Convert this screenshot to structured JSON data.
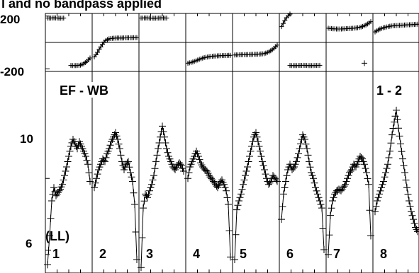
{
  "title": "l and no bandpass applied",
  "baseline_label": "EF - WB",
  "pol_label": "(LL)",
  "corner_label": "1 - 2",
  "phase_ticks": [
    "200",
    "-200"
  ],
  "amp_ticks": [
    "10",
    "6"
  ],
  "chart_data": {
    "type": "scatter",
    "panels": [
      {
        "name": "phase",
        "ylim": [
          -220,
          220
        ],
        "yticks": [
          200,
          -200
        ],
        "channels": [
          {
            "id": "1",
            "segments": [
              {
                "x": [
                  0.0,
                  0.08,
                  0.15,
                  0.22,
                  0.3,
                  0.38
                ],
                "y": [
                  185,
                  185,
                  186,
                  185,
                  184,
                  185
                ]
              },
              {
                "x": [
                  0.55,
                  0.62,
                  0.7,
                  0.78,
                  0.86,
                  0.94,
                  1.0
                ],
                "y": [
                  -175,
                  -176,
                  -175,
                  -172,
                  -160,
                  -140,
                  -118
                ]
              }
            ]
          },
          {
            "id": "2",
            "segments": [
              {
                "x": [
                  0.0,
                  0.06,
                  0.12,
                  0.18,
                  0.25,
                  0.35,
                  0.45,
                  0.55,
                  0.65,
                  0.75,
                  0.85,
                  0.95,
                  1.0
                ],
                "y": [
                  -110,
                  -85,
                  -50,
                  -20,
                  12,
                  28,
                  32,
                  34,
                  34,
                  35,
                  35,
                  36,
                  37
                ]
              }
            ]
          },
          {
            "id": "3",
            "segments": [
              {
                "x": [
                  0.0,
                  0.1,
                  0.2,
                  0.3,
                  0.4,
                  0.5,
                  0.6
                ],
                "y": [
                  185,
                  186,
                  185,
                  184,
                  185,
                  186,
                  185
                ]
              }
            ]
          },
          {
            "id": "4",
            "segments": [
              {
                "x": [
                  0.0,
                  0.1,
                  0.2,
                  0.3,
                  0.4,
                  0.5,
                  0.6,
                  0.7,
                  0.8,
                  0.9,
                  1.0
                ],
                "y": [
                  -158,
                  -150,
                  -138,
                  -124,
                  -114,
                  -108,
                  -104,
                  -102,
                  -100,
                  -99,
                  -98
                ]
              }
            ]
          },
          {
            "id": "5",
            "segments": [
              {
                "x": [
                  0.0,
                  0.1,
                  0.2,
                  0.3,
                  0.4,
                  0.5,
                  0.6,
                  0.7,
                  0.8,
                  0.9,
                  1.0
                ],
                "y": [
                  -95,
                  -94,
                  -93,
                  -92,
                  -91,
                  -90,
                  -88,
                  -85,
                  -72,
                  -52,
                  -20
                ]
              }
            ]
          },
          {
            "id": "6",
            "segments": [
              {
                "x": [
                  0.0,
                  0.05,
                  0.1,
                  0.15,
                  0.2
                ],
                "y": [
                  120,
                  150,
                  180,
                  200,
                  215
                ]
              },
              {
                "x": [
                  0.2,
                  0.3,
                  0.4,
                  0.5,
                  0.6,
                  0.7,
                  0.8,
                  0.9
                ],
                "y": [
                  -175,
                  -176,
                  -175,
                  -174,
                  -175,
                  -176,
                  -175,
                  -174
                ]
              }
            ]
          },
          {
            "id": "7",
            "segments": [
              {
                "x": [
                  0.0,
                  0.1,
                  0.2,
                  0.3,
                  0.4,
                  0.5,
                  0.6,
                  0.7,
                  0.8,
                  0.9,
                  1.0
                ],
                "y": [
                  108,
                  104,
                  102,
                  102,
                  104,
                  106,
                  108,
                  112,
                  120,
                  135,
                  158
                ]
              },
              {
                "x": [
                  0.85
                ],
                "y": [
                  -158
                ]
              }
            ]
          },
          {
            "id": "8",
            "segments": [
              {
                "x": [
                  0.0,
                  0.1,
                  0.2,
                  0.3,
                  0.4,
                  0.5,
                  0.6,
                  0.7,
                  0.8,
                  0.9,
                  1.0
                ],
                "y": [
                  80,
                  100,
                  112,
                  120,
                  126,
                  128,
                  130,
                  132,
                  134,
                  136,
                  138
                ]
              }
            ]
          }
        ]
      },
      {
        "name": "amplitude",
        "scale": "log",
        "ylim": [
          5.3,
          20.5
        ],
        "yticks": [
          10,
          6
        ],
        "channels": [
          {
            "id": "1",
            "x": [
              0.0,
              0.05,
              0.1,
              0.15,
              0.2,
              0.25,
              0.3,
              0.35,
              0.4,
              0.45,
              0.5,
              0.55,
              0.6,
              0.65,
              0.7,
              0.75,
              0.8,
              0.85,
              0.9,
              0.95,
              1.0
            ],
            "y": [
              5.6,
              6.8,
              8.6,
              9.4,
              8.9,
              9.1,
              9.3,
              9.6,
              10.2,
              10.8,
              11.6,
              12.4,
              13.0,
              12.6,
              12.2,
              12.8,
              12.4,
              12.0,
              11.6,
              11.0,
              9.8
            ]
          },
          {
            "id": "2",
            "x": [
              0.0,
              0.05,
              0.1,
              0.15,
              0.2,
              0.25,
              0.3,
              0.35,
              0.4,
              0.45,
              0.5,
              0.55,
              0.6,
              0.65,
              0.7,
              0.75,
              0.8,
              0.85,
              0.9,
              0.95,
              1.0
            ],
            "y": [
              9.4,
              10.0,
              10.6,
              11.0,
              11.4,
              11.2,
              11.8,
              12.2,
              12.8,
              13.2,
              13.6,
              13.0,
              12.2,
              11.2,
              10.6,
              11.0,
              11.2,
              10.4,
              9.8,
              8.4,
              5.8
            ]
          },
          {
            "id": "3",
            "x": [
              0.0,
              0.05,
              0.1,
              0.15,
              0.2,
              0.25,
              0.3,
              0.35,
              0.4,
              0.45,
              0.5,
              0.55,
              0.6,
              0.65,
              0.7,
              0.75,
              0.8,
              0.85,
              0.9,
              0.95,
              1.0
            ],
            "y": [
              5.5,
              8.2,
              9.0,
              8.8,
              9.2,
              9.6,
              10.2,
              11.2,
              12.2,
              13.2,
              14.2,
              13.2,
              12.2,
              11.6,
              11.2,
              10.8,
              10.6,
              10.9,
              11.1,
              10.9,
              10.5
            ]
          },
          {
            "id": "4",
            "x": [
              0.0,
              0.05,
              0.1,
              0.15,
              0.2,
              0.25,
              0.3,
              0.35,
              0.4,
              0.45,
              0.5,
              0.55,
              0.6,
              0.65,
              0.7,
              0.75,
              0.8,
              0.85,
              0.9,
              0.95,
              1.0
            ],
            "y": [
              10.0,
              10.8,
              11.2,
              11.6,
              12.0,
              11.6,
              11.1,
              10.8,
              10.6,
              10.5,
              10.2,
              10.0,
              9.8,
              9.6,
              9.4,
              9.7,
              9.9,
              9.6,
              9.2,
              8.4,
              5.9
            ]
          },
          {
            "id": "5",
            "x": [
              0.0,
              0.05,
              0.1,
              0.15,
              0.2,
              0.25,
              0.3,
              0.35,
              0.4,
              0.45,
              0.5,
              0.55,
              0.6,
              0.65,
              0.7,
              0.75,
              0.8,
              0.85,
              0.9,
              0.95,
              1.0
            ],
            "y": [
              5.8,
              8.1,
              8.6,
              9.0,
              9.6,
              10.2,
              10.8,
              11.6,
              12.4,
              13.2,
              13.6,
              12.8,
              12.0,
              11.2,
              10.6,
              10.0,
              9.6,
              9.8,
              10.2,
              10.0,
              9.8
            ]
          },
          {
            "id": "6",
            "x": [
              0.0,
              0.05,
              0.1,
              0.15,
              0.2,
              0.25,
              0.3,
              0.35,
              0.4,
              0.45,
              0.5,
              0.55,
              0.6,
              0.65,
              0.7,
              0.75,
              0.8,
              0.85,
              0.9,
              0.95,
              1.0
            ],
            "y": [
              7.6,
              9.0,
              9.8,
              10.6,
              11.0,
              10.6,
              10.8,
              11.2,
              11.8,
              12.6,
              13.4,
              13.0,
              12.2,
              11.2,
              10.4,
              10.0,
              9.4,
              9.0,
              8.6,
              8.2,
              6.2
            ]
          },
          {
            "id": "7",
            "x": [
              0.0,
              0.05,
              0.1,
              0.15,
              0.2,
              0.25,
              0.3,
              0.35,
              0.4,
              0.45,
              0.5,
              0.55,
              0.6,
              0.65,
              0.7,
              0.75,
              0.8,
              0.85,
              0.9,
              0.95,
              1.0
            ],
            "y": [
              6.0,
              7.8,
              8.6,
              9.0,
              9.2,
              9.3,
              9.2,
              9.4,
              9.6,
              10.0,
              10.4,
              10.6,
              11.0,
              10.8,
              11.2,
              11.6,
              11.4,
              11.0,
              10.4,
              9.6,
              6.8
            ]
          },
          {
            "id": "8",
            "x": [
              0.0,
              0.05,
              0.1,
              0.15,
              0.2,
              0.25,
              0.3,
              0.35,
              0.4,
              0.45,
              0.5,
              0.55,
              0.6,
              0.65,
              0.7,
              0.75,
              0.8,
              0.85,
              0.9,
              0.95,
              1.0
            ],
            "y": [
              8.0,
              8.6,
              9.0,
              9.4,
              9.8,
              10.4,
              11.0,
              12.0,
              13.4,
              14.6,
              15.8,
              14.0,
              12.6,
              11.4,
              10.4,
              9.4,
              8.6,
              8.0,
              7.6,
              7.2,
              7.0
            ]
          }
        ]
      }
    ]
  }
}
